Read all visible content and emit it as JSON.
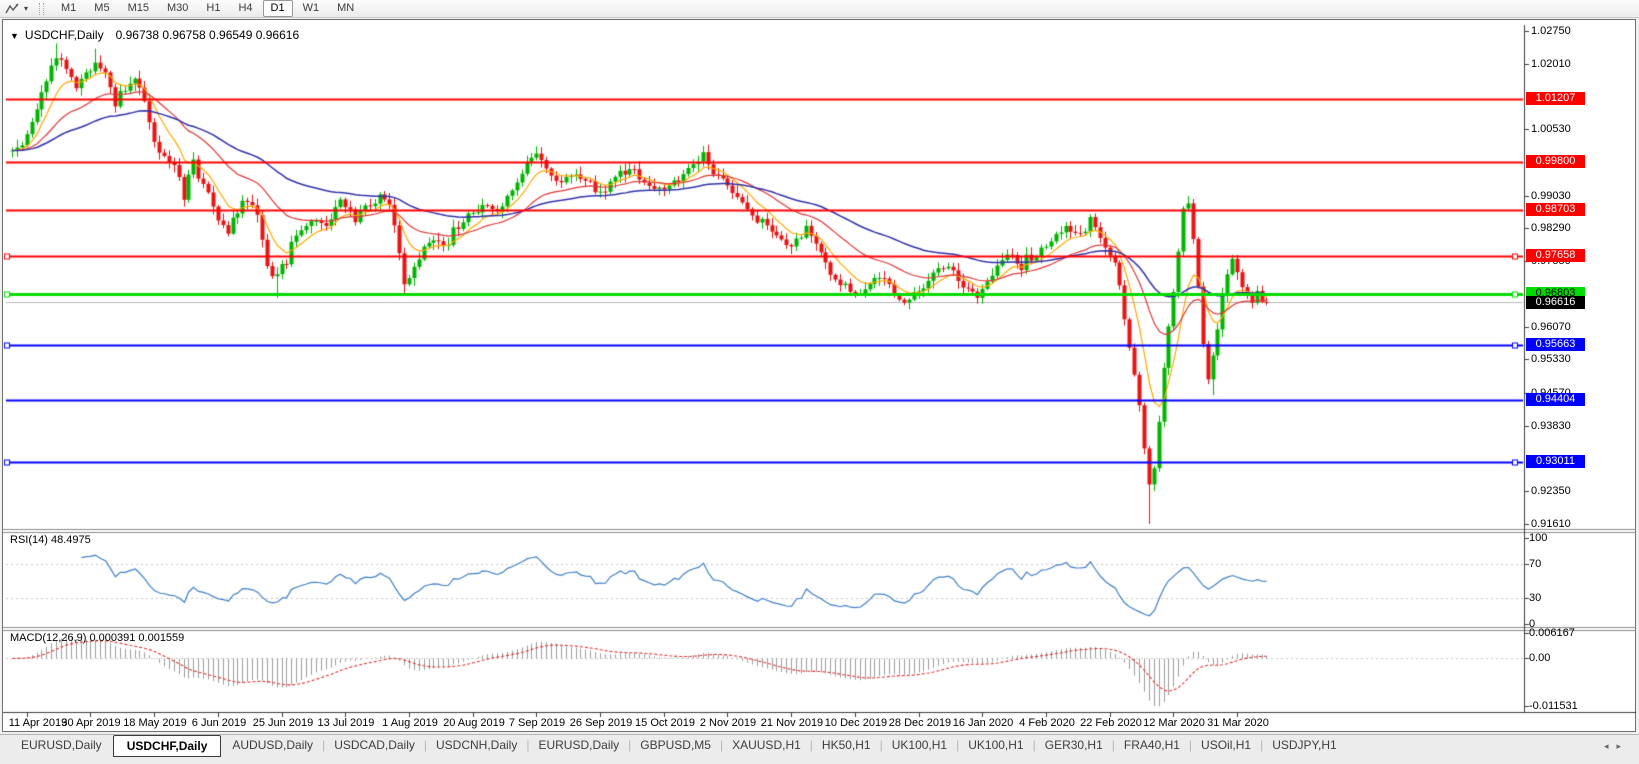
{
  "toolbar": {
    "line_tool_icon": "trendline-tool",
    "timeframes": [
      "M1",
      "M5",
      "M15",
      "M30",
      "H1",
      "H4",
      "D1",
      "W1",
      "MN"
    ],
    "active_timeframe": "D1"
  },
  "chart": {
    "title_symbol": "USDCHF,Daily",
    "title_ohlc": "0.96738 0.96758 0.96549 0.96616"
  },
  "colors": {
    "bull": "#00b400",
    "bear": "#e81414",
    "ma_fast": "#ffa800",
    "ma_mid": "#e03838",
    "ma_slow": "#3232aa",
    "rsi": "#4080c8",
    "macd_hist": "#9c9c9c",
    "macd_signal": "#e03030",
    "line_red": "#ff0000",
    "line_blue": "#0000ff",
    "line_green": "#00dc00",
    "line_current": "#b8b8b8",
    "axis": "#3c3c3c"
  },
  "chart_data": {
    "type": "candlestick",
    "symbol": "USDCHF",
    "timeframe": "Daily",
    "ohlc": {
      "open": "0.96738",
      "high": "0.96758",
      "low": "0.96549",
      "close": "0.96616"
    },
    "ylim": [
      0.9161,
      1.0275
    ],
    "bar_count": 257,
    "first_open": 1.0005,
    "axis_ticks": [
      "1.02750",
      "1.02010",
      "1.00530",
      "0.99030",
      "0.98290",
      "0.97550",
      "0.96070",
      "0.95330",
      "0.94570",
      "0.93830",
      "0.92350",
      "0.91610"
    ],
    "hlines": [
      {
        "price": 1.01207,
        "label": "1.01207",
        "color": "line_red",
        "width": 2,
        "markers": false
      },
      {
        "price": 0.998,
        "label": "0.99800",
        "color": "line_red",
        "width": 2,
        "markers": false
      },
      {
        "price": 0.98703,
        "label": "0.98703",
        "color": "line_red",
        "width": 2,
        "markers": false
      },
      {
        "price": 0.97658,
        "label": "0.97658",
        "color": "line_red",
        "width": 2,
        "markers": true
      },
      {
        "price": 0.96803,
        "label": "0.96803",
        "color": "line_green",
        "width": 3,
        "markers": true,
        "text": "#000"
      },
      {
        "price": 0.95663,
        "label": "0.95663",
        "color": "line_blue",
        "width": 2,
        "markers": true
      },
      {
        "price": 0.94404,
        "label": "0.94404",
        "color": "line_blue",
        "width": 2,
        "markers": false
      },
      {
        "price": 0.93011,
        "label": "0.93011",
        "color": "line_blue",
        "width": 2,
        "markers": true
      }
    ],
    "current_price": {
      "value": 0.96616,
      "label": "0.96616"
    },
    "dates": [
      "11 Apr 2019",
      "30 Apr 2019",
      "18 May 2019",
      "6 Jun 2019",
      "25 Jun 2019",
      "13 Jul 2019",
      "1 Aug 2019",
      "20 Aug 2019",
      "7 Sep 2019",
      "26 Sep 2019",
      "15 Oct 2019",
      "2 Nov 2019",
      "21 Nov 2019",
      "10 Dec 2019",
      "28 Dec 2019",
      "16 Jan 2020",
      "4 Feb 2020",
      "22 Feb 2020",
      "12 Mar 2020",
      "31 Mar 2020"
    ],
    "anchors": [
      [
        0,
        1.0005
      ],
      [
        3,
        1.003
      ],
      [
        6,
        1.014
      ],
      [
        9,
        1.0215
      ],
      [
        11,
        1.0195
      ],
      [
        13,
        1.015
      ],
      [
        15,
        1.0185
      ],
      [
        17,
        1.02
      ],
      [
        19,
        1.0175
      ],
      [
        21,
        1.011
      ],
      [
        23,
        1.014
      ],
      [
        25,
        1.0165
      ],
      [
        27,
        1.0115
      ],
      [
        29,
        1.002
      ],
      [
        31,
        0.999
      ],
      [
        33,
        0.9975
      ],
      [
        35,
        0.9905
      ],
      [
        37,
        0.997
      ],
      [
        39,
        0.994
      ],
      [
        41,
        0.9875
      ],
      [
        44,
        0.9825
      ],
      [
        47,
        0.989
      ],
      [
        50,
        0.9865
      ],
      [
        52,
        0.975
      ],
      [
        54,
        0.9715
      ],
      [
        56,
        0.976
      ],
      [
        58,
        0.982
      ],
      [
        61,
        0.985
      ],
      [
        64,
        0.9835
      ],
      [
        67,
        0.989
      ],
      [
        70,
        0.9855
      ],
      [
        73,
        0.988
      ],
      [
        76,
        0.9905
      ],
      [
        78,
        0.984
      ],
      [
        80,
        0.97
      ],
      [
        82,
        0.974
      ],
      [
        84,
        0.979
      ],
      [
        86,
        0.981
      ],
      [
        88,
        0.9785
      ],
      [
        90,
        0.982
      ],
      [
        93,
        0.9855
      ],
      [
        96,
        0.988
      ],
      [
        99,
        0.987
      ],
      [
        102,
        0.992
      ],
      [
        105,
        0.9975
      ],
      [
        107,
        1.0
      ],
      [
        109,
        0.997
      ],
      [
        112,
        0.993
      ],
      [
        115,
        0.9955
      ],
      [
        118,
        0.993
      ],
      [
        121,
        0.9905
      ],
      [
        124,
        0.995
      ],
      [
        127,
        0.996
      ],
      [
        130,
        0.9925
      ],
      [
        133,
        0.991
      ],
      [
        136,
        0.994
      ],
      [
        139,
        0.9975
      ],
      [
        141,
        0.999
      ],
      [
        144,
        0.995
      ],
      [
        147,
        0.991
      ],
      [
        150,
        0.987
      ],
      [
        153,
        0.984
      ],
      [
        156,
        0.981
      ],
      [
        159,
        0.9785
      ],
      [
        162,
        0.9835
      ],
      [
        164,
        0.9795
      ],
      [
        167,
        0.973
      ],
      [
        170,
        0.97
      ],
      [
        173,
        0.968
      ],
      [
        176,
        0.9725
      ],
      [
        179,
        0.9695
      ],
      [
        182,
        0.9665
      ],
      [
        185,
        0.969
      ],
      [
        188,
        0.972
      ],
      [
        191,
        0.9745
      ],
      [
        194,
        0.97
      ],
      [
        197,
        0.967
      ],
      [
        200,
        0.9725
      ],
      [
        203,
        0.9765
      ],
      [
        206,
        0.9745
      ],
      [
        209,
        0.9775
      ],
      [
        212,
        0.9805
      ],
      [
        215,
        0.983
      ],
      [
        218,
        0.9812
      ],
      [
        220,
        0.9845
      ],
      [
        222,
        0.9815
      ],
      [
        224,
        0.978
      ],
      [
        226,
        0.97
      ],
      [
        228,
        0.956
      ],
      [
        229,
        0.95
      ],
      [
        230,
        0.942
      ],
      [
        231,
        0.933
      ],
      [
        232,
        0.9245
      ],
      [
        233,
        0.929
      ],
      [
        234,
        0.939
      ],
      [
        235,
        0.951
      ],
      [
        236,
        0.96
      ],
      [
        237,
        0.968
      ],
      [
        238,
        0.978
      ],
      [
        239,
        0.987
      ],
      [
        240,
        0.989
      ],
      [
        241,
        0.981
      ],
      [
        242,
        0.969
      ],
      [
        243,
        0.956
      ],
      [
        244,
        0.948
      ],
      [
        245,
        0.953
      ],
      [
        246,
        0.961
      ],
      [
        247,
        0.968
      ],
      [
        248,
        0.972
      ],
      [
        249,
        0.9765
      ],
      [
        250,
        0.973
      ],
      [
        251,
        0.97
      ],
      [
        252,
        0.9672
      ],
      [
        253,
        0.9655
      ],
      [
        254,
        0.968
      ],
      [
        255,
        0.967
      ],
      [
        256,
        0.96616
      ]
    ],
    "wick_overrides": [
      {
        "bar": 9,
        "high": 1.0247
      },
      {
        "bar": 17,
        "high": 1.0235
      },
      {
        "bar": 54,
        "low": 0.9672
      },
      {
        "bar": 80,
        "low": 0.9676
      },
      {
        "bar": 232,
        "low": 0.9161
      },
      {
        "bar": 240,
        "high": 0.9902
      },
      {
        "bar": 245,
        "low": 0.9452
      }
    ],
    "moving_averages": [
      {
        "period": 8,
        "color": "ma_fast"
      },
      {
        "period": 24,
        "color": "ma_mid"
      },
      {
        "period": 55,
        "color": "ma_slow"
      }
    ],
    "rsi": {
      "label": "RSI(14) 48.4975",
      "period": 14,
      "value": 48.4975,
      "scale": [
        "100",
        "70",
        "30",
        "0"
      ],
      "level_lines": [
        70,
        30
      ]
    },
    "macd": {
      "label": "MACD(12,26,9) 0.000391 0.001559",
      "fast": 12,
      "slow": 26,
      "signal": 9,
      "values": [
        0.000391,
        0.001559
      ],
      "scale": [
        {
          "text": "0.006167",
          "v": 0.006167
        },
        {
          "text": "0.00",
          "v": 0
        },
        {
          "text": "-0.011531",
          "v": -0.011531
        }
      ]
    }
  },
  "tabs": {
    "active_index": 1,
    "items": [
      "EURUSD,Daily",
      "USDCHF,Daily",
      "AUDUSD,Daily",
      "USDCAD,Daily",
      "USDCNH,Daily",
      "EURUSD,Daily",
      "GBPUSD,M5",
      "XAUUSD,H1",
      "HK50,H1",
      "UK100,H1",
      "UK100,H1",
      "GER30,H1",
      "FRA40,H1",
      "USOil,H1",
      "USDJPY,H1"
    ],
    "scroll_left": "◂",
    "scroll_right": "▸"
  }
}
